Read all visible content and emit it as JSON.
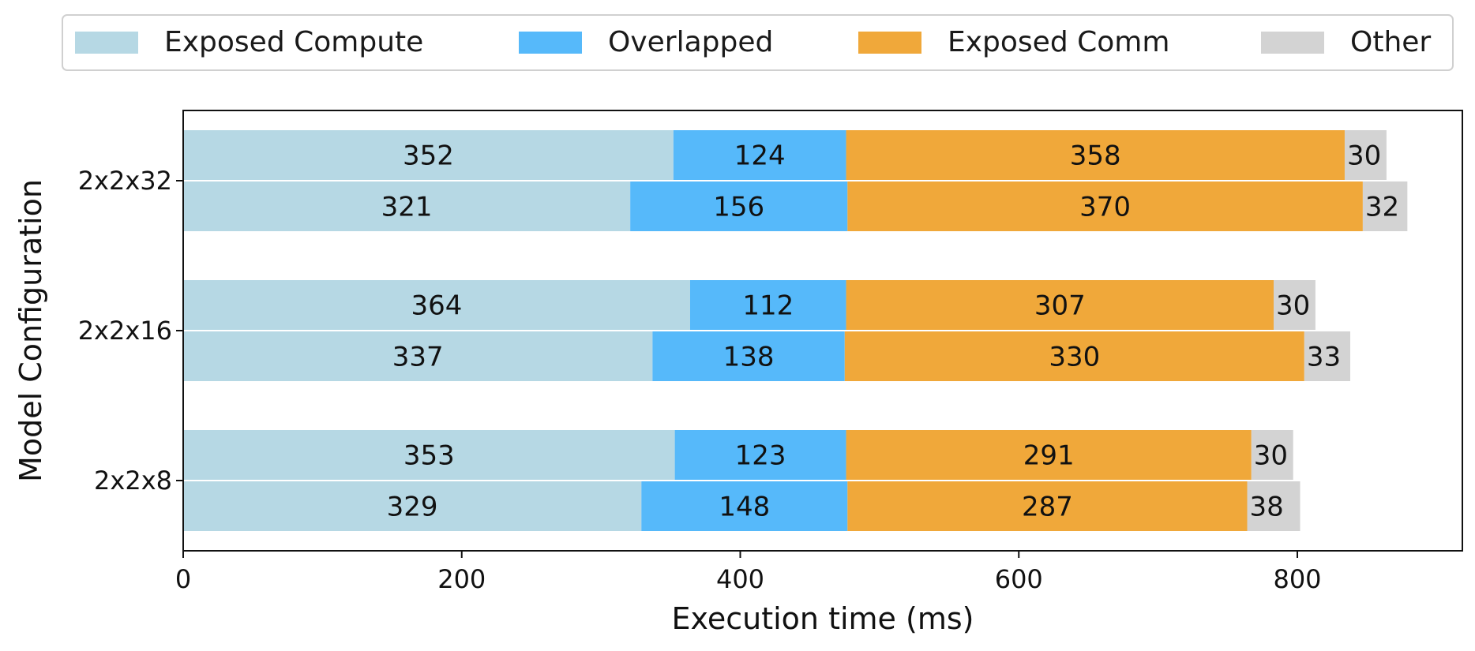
{
  "chart_data": {
    "type": "bar",
    "orientation": "horizontal",
    "stacked": true,
    "xlabel": "Execution time (ms)",
    "ylabel": "Model Configuration",
    "xlim": [
      0,
      920
    ],
    "xticks": [
      0,
      200,
      400,
      600,
      800
    ],
    "categories": [
      "2x2x32",
      "2x2x16",
      "2x2x8"
    ],
    "bars_per_category": 2,
    "legend_position": "top",
    "grid": false,
    "series": [
      {
        "name": "Exposed Compute",
        "color": "#b6d8e4",
        "values": [
          [
            352,
            321
          ],
          [
            364,
            337
          ],
          [
            353,
            329
          ]
        ]
      },
      {
        "name": "Overlapped",
        "color": "#56b9fa",
        "values": [
          [
            124,
            156
          ],
          [
            112,
            138
          ],
          [
            123,
            148
          ]
        ]
      },
      {
        "name": "Exposed Comm",
        "color": "#f0a83a",
        "values": [
          [
            358,
            370
          ],
          [
            307,
            330
          ],
          [
            291,
            287
          ]
        ]
      },
      {
        "name": "Other",
        "color": "#d3d3d3",
        "values": [
          [
            30,
            32
          ],
          [
            30,
            33
          ],
          [
            30,
            38
          ]
        ]
      }
    ]
  }
}
